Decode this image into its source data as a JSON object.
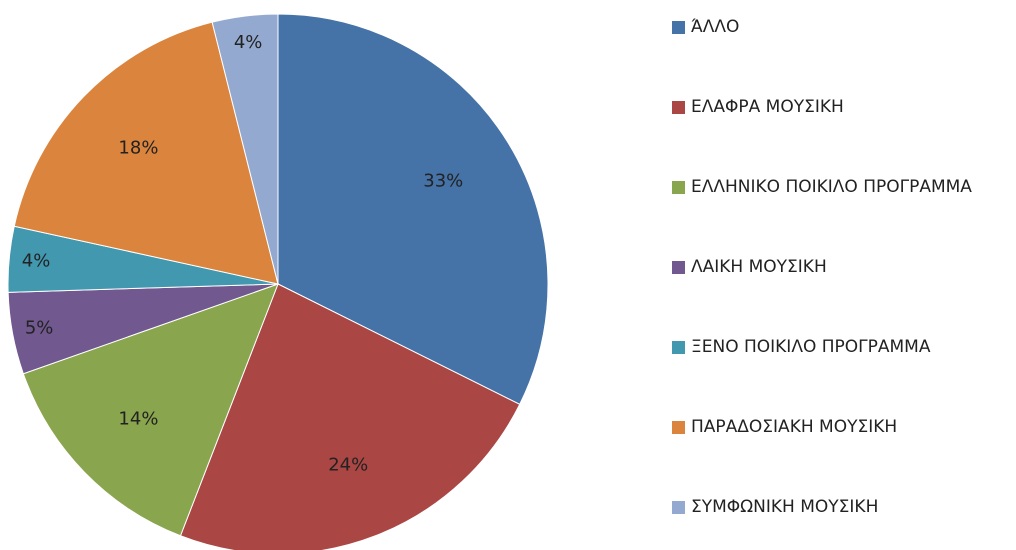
{
  "chart_data": {
    "type": "pie",
    "categories": [
      "ΆΛΛΟ",
      "ΕΛΑΦΡΑ ΜΟΥΣΙΚΗ",
      "ΕΛΛΗΝΙΚΟ ΠΟΙΚΙΛΟ ΠΡΟΓΡΑΜΜΑ",
      "ΛΑΙΚΗ ΜΟΥΣΙΚΗ",
      "ΞΕΝΟ ΠΟΙΚΙΛΟ ΠΡΟΓΡΑΜΜΑ",
      "ΠΑΡΑΔΟΣΙΑΚΗ ΜΟΥΣΙΚΗ",
      "ΣΥΜΦΩΝΙΚΗ ΜΟΥΣΙΚΗ"
    ],
    "values": [
      33,
      24,
      14,
      5,
      4,
      18,
      4
    ],
    "value_labels": [
      "33%",
      "24%",
      "14%",
      "5%",
      "4%",
      "18%",
      "4%"
    ],
    "colors": [
      "#4572a7",
      "#aa4643",
      "#89a54e",
      "#71588f",
      "#4198af",
      "#db843d",
      "#93a9cf"
    ],
    "legend": "right"
  }
}
